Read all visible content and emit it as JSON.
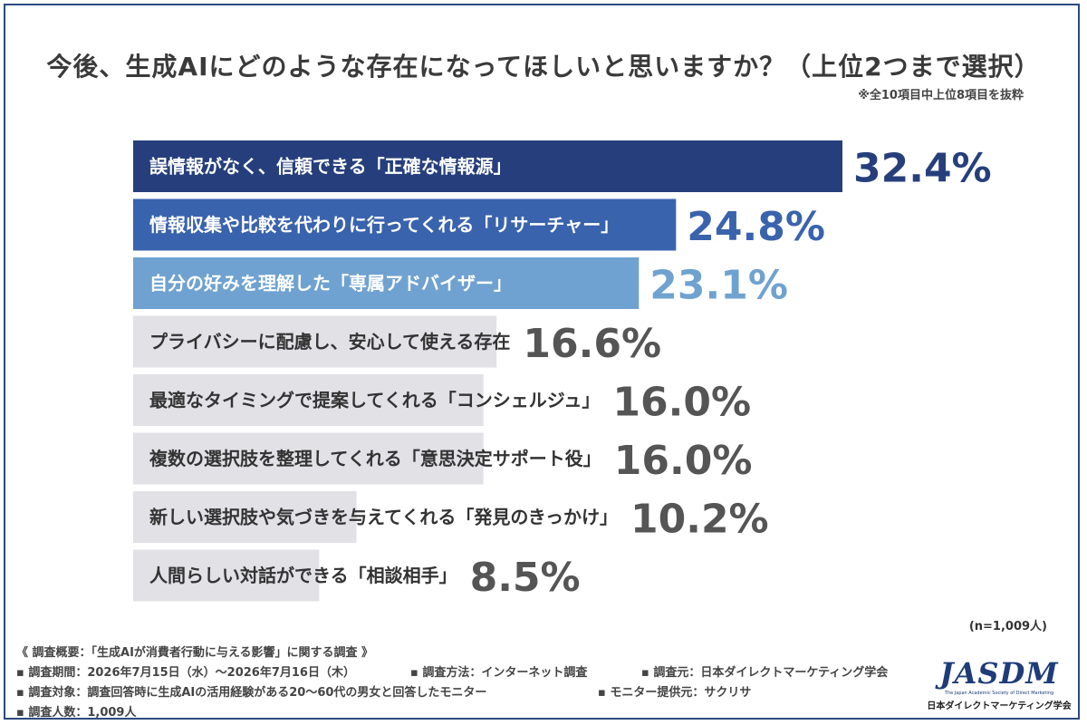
{
  "header": {
    "title": "今後、生成AIにどのような存在になってほしいと思いますか？（上位2つまで選択）",
    "note": "※全10項目中上位8項目を抜粋"
  },
  "chart_data": {
    "type": "bar",
    "orientation": "horizontal",
    "categories": [
      "誤情報がなく、信頼できる「正確な情報源」",
      "情報収集や比較を代わりに行ってくれる「リサーチャー」",
      "自分の好みを理解した「専属アドバイザー」",
      "プライバシーに配慮し、安心して使える存在",
      "最適なタイミングで提案してくれる「コンシェルジュ」",
      "複数の選択肢を整理してくれる「意思決定サポート役」",
      "新しい選択肢や気づきを与えてくれる「発見のきっかけ」",
      "人間らしい対話ができる「相談相手」"
    ],
    "values": [
      32.4,
      24.8,
      23.1,
      16.6,
      16.0,
      16.0,
      10.2,
      8.5
    ],
    "value_labels": [
      "32.4%",
      "24.8%",
      "23.1%",
      "16.6%",
      "16.0%",
      "16.0%",
      "10.2%",
      "8.5%"
    ],
    "unit": "%",
    "bar_colors": [
      "#263f7c",
      "#3a63ad",
      "#6fa2d0",
      "#e1e1e6",
      "#e1e1e6",
      "#e1e1e6",
      "#e1e1e6",
      "#e1e1e6"
    ],
    "label_colors": [
      "#ffffff",
      "#ffffff",
      "#ffffff",
      "#333333",
      "#333333",
      "#333333",
      "#333333",
      "#333333"
    ],
    "value_colors": [
      "#263f7c",
      "#3a63ad",
      "#6fa2d0",
      "#555555",
      "#555555",
      "#555555",
      "#555555",
      "#555555"
    ],
    "xlim": [
      0,
      32.4
    ],
    "grid": false,
    "legend": "none"
  },
  "sample_size": "(n=1,009人)",
  "survey": {
    "overview": "《 調査概要：「生成AIが消費者行動に与える影響」に関する調査 》",
    "period": "▪ 調査期間：2026年7月15日（水）～2026年7月16日（木）",
    "method": "▪ 調査方法：インターネット調査",
    "organizer": "▪ 調査元：日本ダイレクトマーケティング学会",
    "target": "▪ 調査対象：調査回答時に生成AIの活用経験がある20～60代の男女と回答したモニター",
    "provider": "▪ モニター提供元：サクリサ",
    "respondents": "▪ 調査人数：1,009人"
  },
  "logo": {
    "text": "JASDM",
    "subtitle_en": "The Japan Academic Society of Direct Marketing",
    "subtitle_jp": "日本ダイレクトマーケティング学会"
  }
}
